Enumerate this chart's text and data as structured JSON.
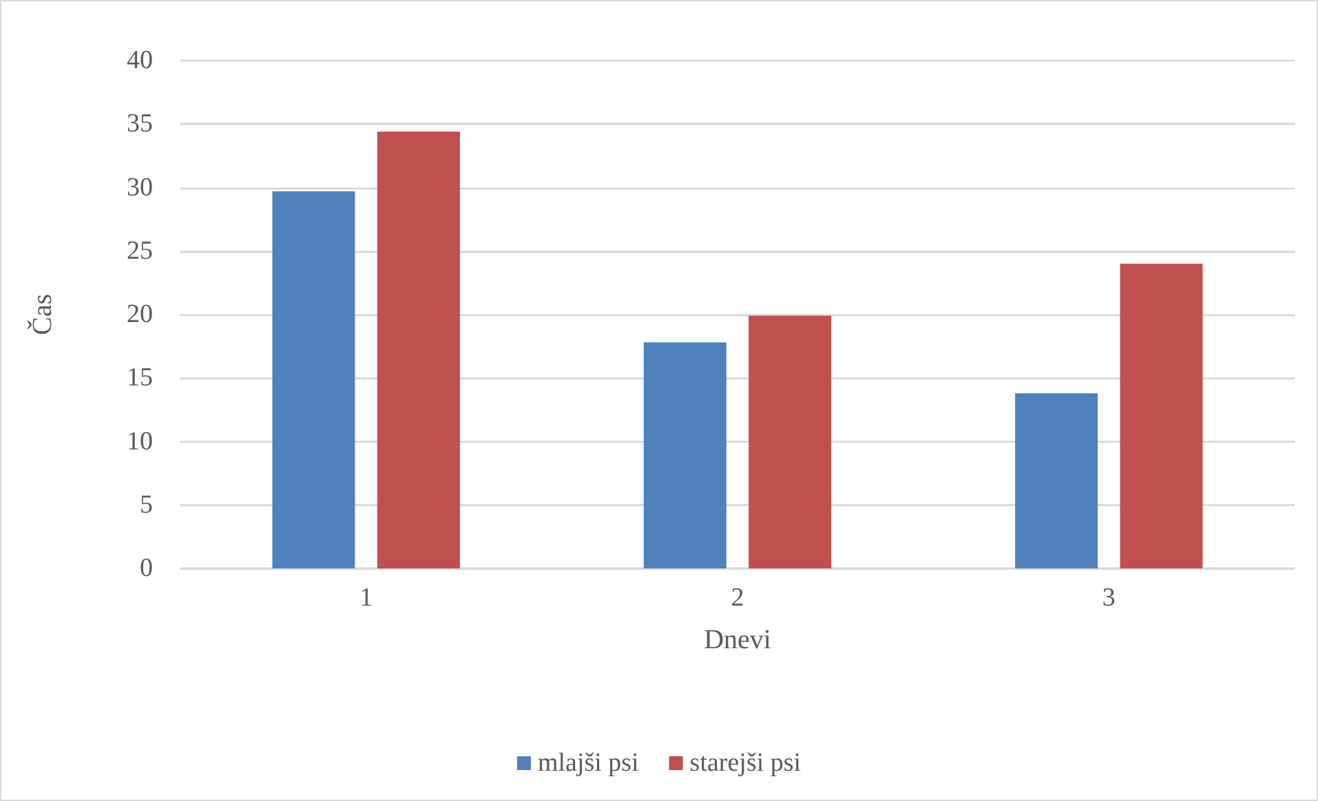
{
  "chart_data": {
    "type": "bar",
    "xlabel": "Dnevi",
    "ylabel": "Čas",
    "categories": [
      "1",
      "2",
      "3"
    ],
    "series": [
      {
        "name": "mlajši psi",
        "color": "#4f81bd",
        "values": [
          29.7,
          17.8,
          13.8
        ]
      },
      {
        "name": "starejši psi",
        "color": "#c0504d",
        "values": [
          34.4,
          19.9,
          24.0
        ]
      }
    ],
    "ylim": [
      0,
      40
    ],
    "yticks": [
      0,
      5,
      10,
      15,
      20,
      25,
      30,
      35,
      40
    ],
    "grid": "y",
    "legend": "bottom"
  }
}
